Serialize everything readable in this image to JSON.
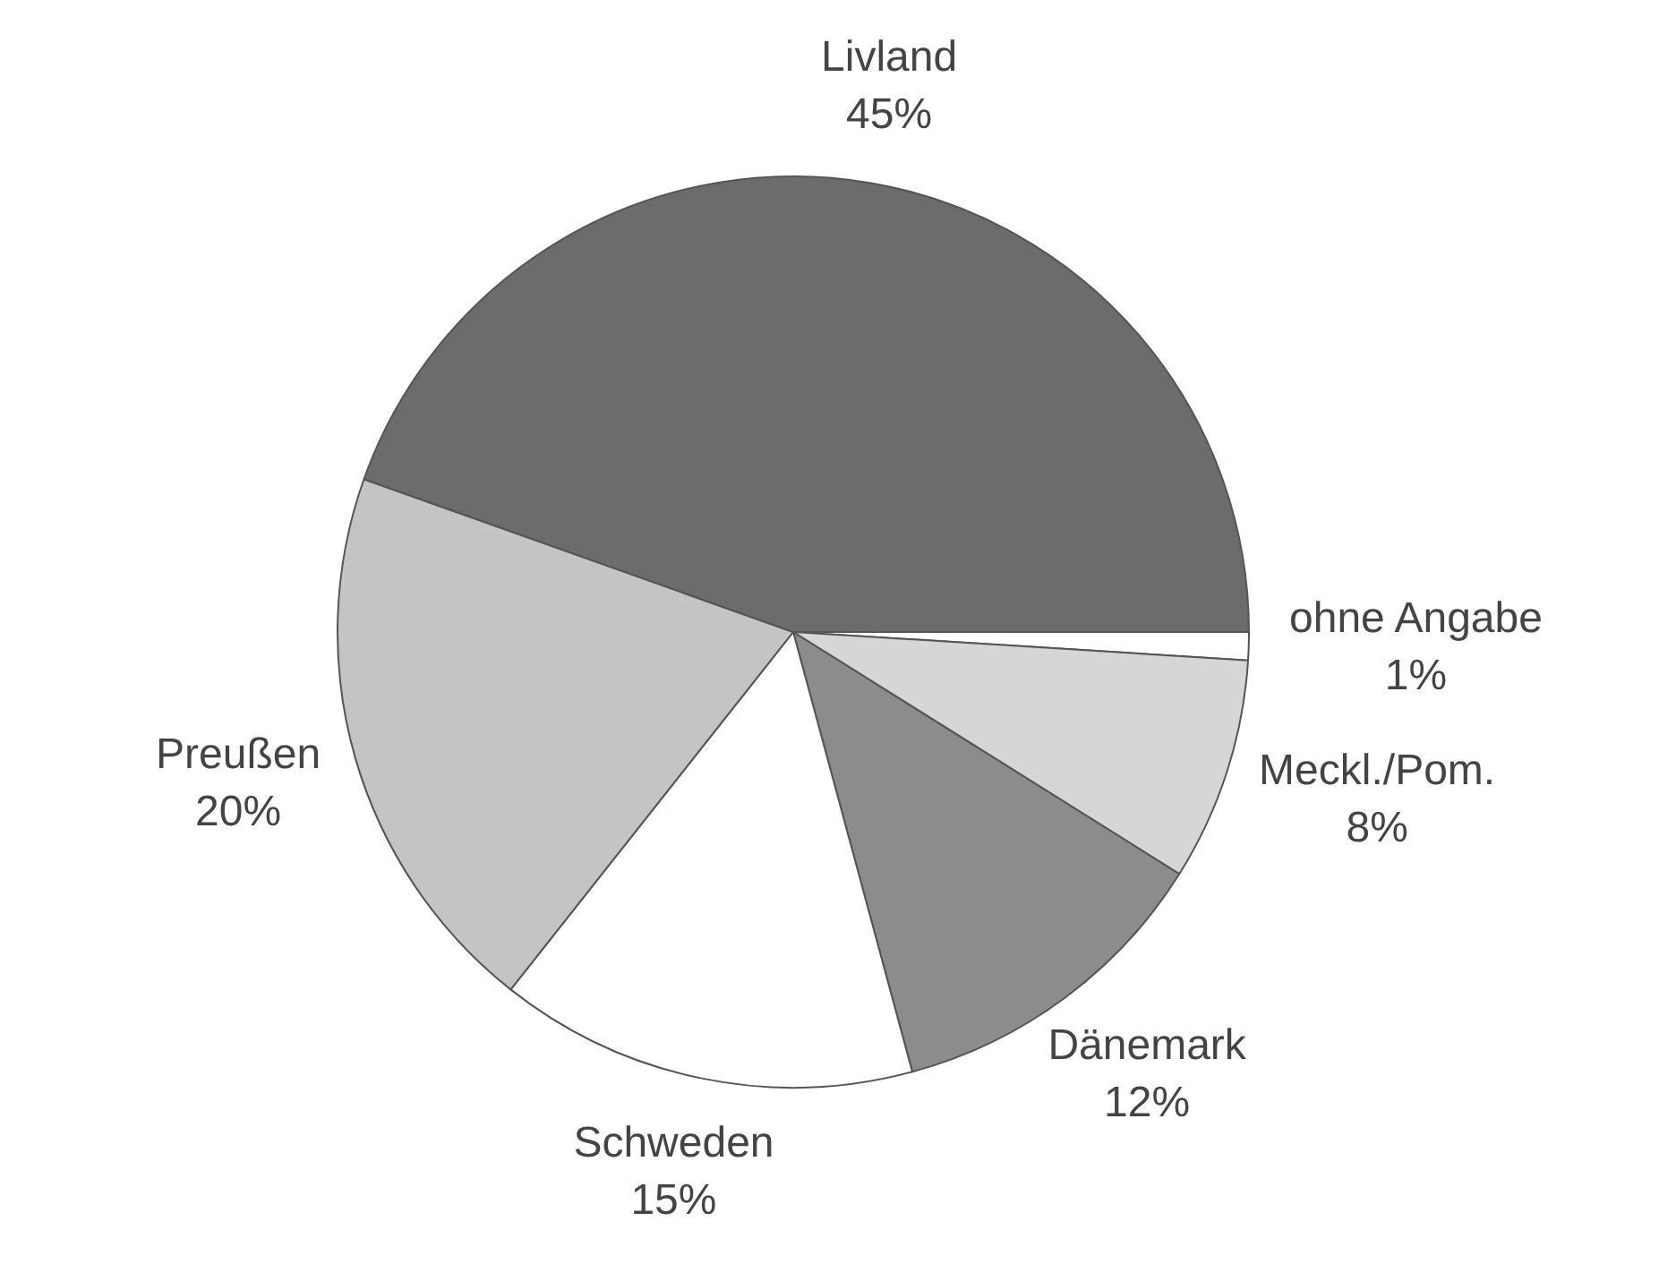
{
  "chart_data": {
    "type": "pie",
    "categories": [
      "ohne Angabe",
      "Meckl./Pom.",
      "Dänemark",
      "Schweden",
      "Preußen",
      "Livland"
    ],
    "values": [
      1,
      8,
      12,
      15,
      20,
      45
    ],
    "colors": [
      "#ffffff",
      "#d6d6d6",
      "#8c8c8c",
      "#ffffff",
      "#c4c4c4",
      "#6c6c6c"
    ],
    "value_labels": [
      "1%",
      "8%",
      "12%",
      "15%",
      "20%",
      "45%"
    ],
    "legend": false
  }
}
